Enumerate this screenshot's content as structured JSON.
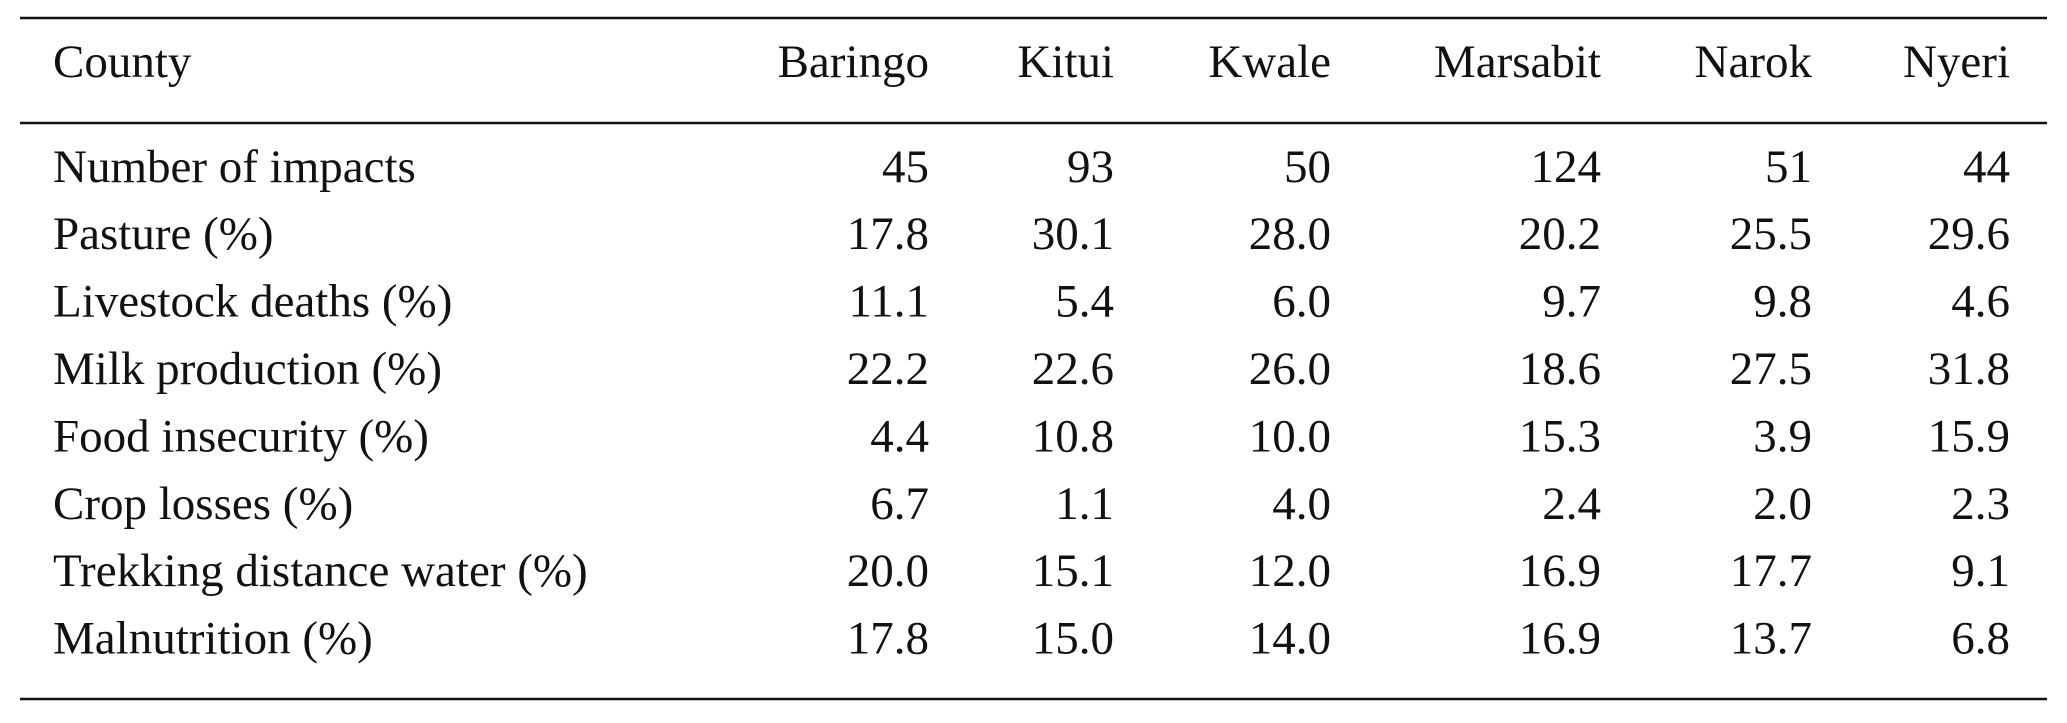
{
  "table": {
    "header": [
      "County",
      "Baringo",
      "Kitui",
      "Kwale",
      "Marsabit",
      "Narok",
      "Nyeri"
    ],
    "rows": [
      [
        "Number of impacts",
        "45",
        "93",
        "50",
        "124",
        "51",
        "44"
      ],
      [
        "Pasture (%)",
        "17.8",
        "30.1",
        "28.0",
        "20.2",
        "25.5",
        "29.6"
      ],
      [
        "Livestock deaths (%)",
        "11.1",
        "5.4",
        "6.0",
        "9.7",
        "9.8",
        "4.6"
      ],
      [
        "Milk production (%)",
        "22.2",
        "22.6",
        "26.0",
        "18.6",
        "27.5",
        "31.8"
      ],
      [
        "Food insecurity (%)",
        "4.4",
        "10.8",
        "10.0",
        "15.3",
        "3.9",
        "15.9"
      ],
      [
        "Crop losses (%)",
        "6.7",
        "1.1",
        "4.0",
        "2.4",
        "2.0",
        "2.3"
      ],
      [
        "Trekking distance water (%)",
        "20.0",
        "15.1",
        "12.0",
        "16.9",
        "17.7",
        "9.1"
      ],
      [
        "Malnutrition (%)",
        "17.8",
        "15.0",
        "14.0",
        "16.9",
        "13.7",
        "6.8"
      ]
    ]
  }
}
